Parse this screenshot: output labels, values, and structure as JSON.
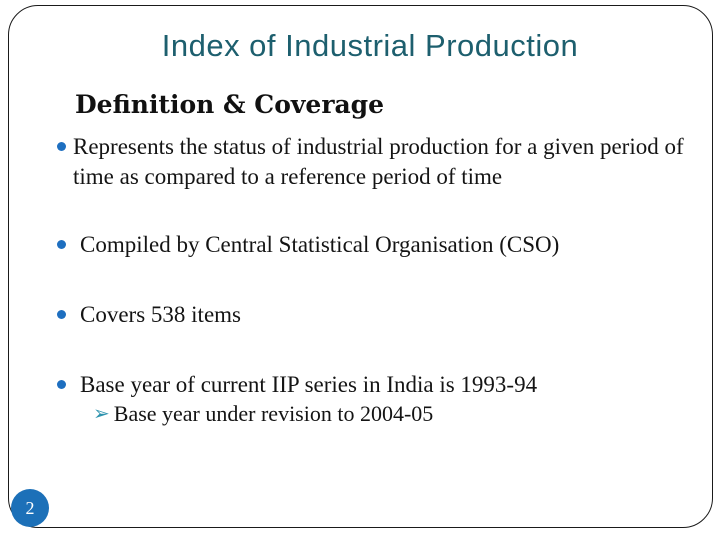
{
  "slide": {
    "title": "Index of Industrial Production",
    "heading": "Definition & Coverage",
    "bullets": [
      {
        "text": "Represents the status of industrial production for a given period of time as compared to a reference period of time"
      },
      {
        "text": "Compiled by Central Statistical Organisation (CSO)"
      },
      {
        "text": "Covers 538 items"
      },
      {
        "text": "Base year of current IIP series in India is 1993-94",
        "sub_bullets": [
          "Base year under revision to 2004-05"
        ]
      }
    ],
    "page_number": "2",
    "icons": {
      "bullet_dot": "round-blue-dot",
      "sub_bullet_arrow": "➢"
    },
    "colors": {
      "title_text": "#1d5f6e",
      "body_text": "#141414",
      "bullet_dot": "#1e6fc0",
      "sub_bullet_arrow": "#2e93ae",
      "page_badge_bg": "#1c70b8",
      "page_badge_text": "#ffffff",
      "frame_border": "#1a1a1a",
      "background": "#ffffff"
    }
  }
}
